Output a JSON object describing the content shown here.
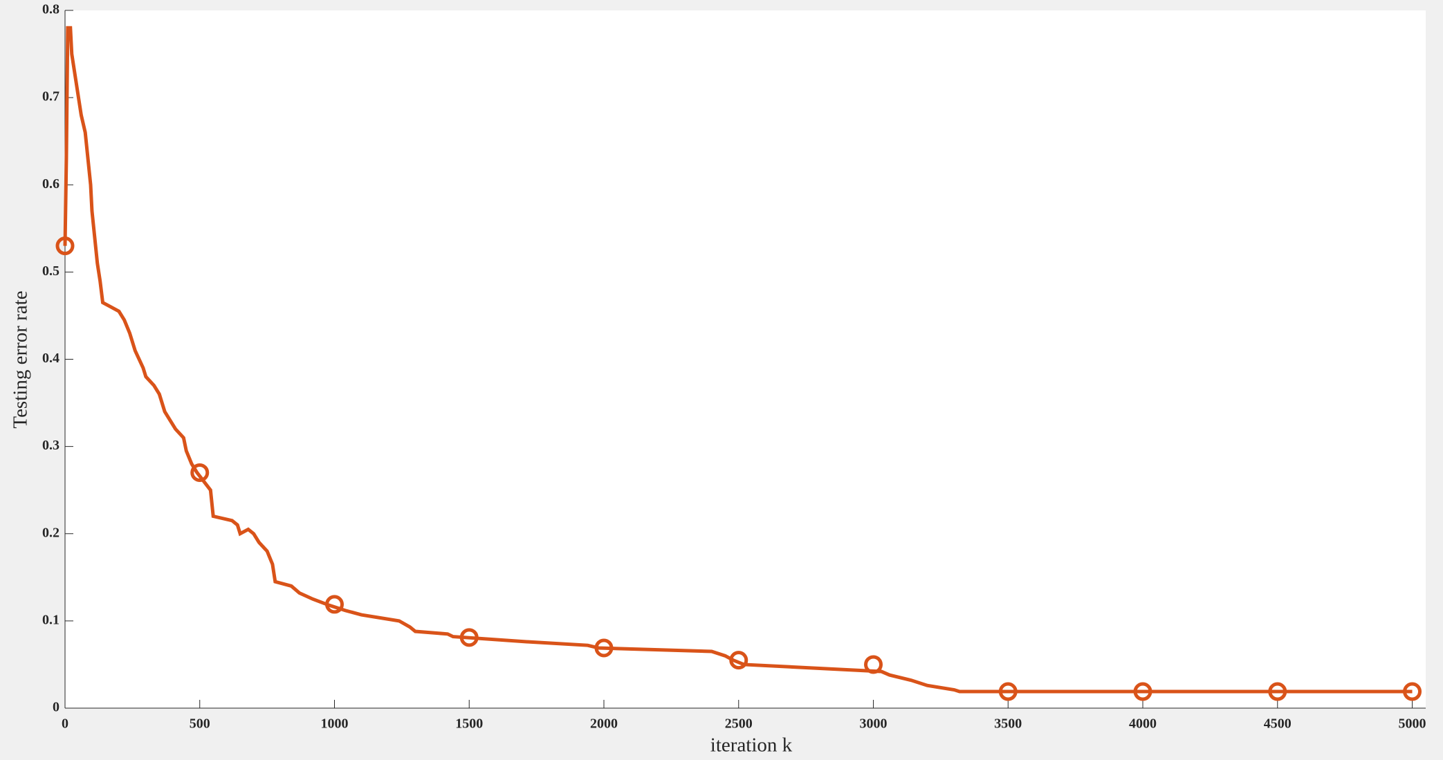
{
  "chart_data": {
    "type": "line",
    "xlabel": "iteration k",
    "ylabel": "Testing error rate",
    "xlim": [
      0,
      5050
    ],
    "ylim": [
      0,
      0.8
    ],
    "xticks": [
      0,
      500,
      1000,
      1500,
      2000,
      2500,
      3000,
      3500,
      4000,
      4500,
      5000
    ],
    "yticks": [
      0,
      0.1,
      0.2,
      0.3,
      0.4,
      0.5,
      0.6,
      0.7,
      0.8
    ],
    "series": [
      {
        "color": "#d95319",
        "x": [
          0,
          5,
          10,
          20,
          25,
          40,
          50,
          60,
          75,
          85,
          95,
          100,
          110,
          120,
          130,
          140,
          170,
          200,
          220,
          240,
          260,
          290,
          300,
          330,
          350,
          370,
          390,
          410,
          440,
          450,
          470,
          490,
          540,
          550,
          620,
          640,
          650,
          680,
          700,
          720,
          750,
          770,
          780,
          840,
          870,
          920,
          980,
          1040,
          1100,
          1240,
          1280,
          1300,
          1420,
          1440,
          1720,
          1940,
          1980,
          2400,
          2450,
          2480,
          2520,
          3030,
          3060,
          3140,
          3200,
          3300,
          3320,
          5000
        ],
        "values": [
          0.53,
          0.63,
          0.78,
          0.78,
          0.75,
          0.72,
          0.7,
          0.68,
          0.66,
          0.63,
          0.6,
          0.57,
          0.54,
          0.51,
          0.49,
          0.465,
          0.46,
          0.455,
          0.445,
          0.43,
          0.41,
          0.39,
          0.38,
          0.37,
          0.36,
          0.34,
          0.33,
          0.32,
          0.31,
          0.295,
          0.28,
          0.27,
          0.25,
          0.22,
          0.215,
          0.21,
          0.2,
          0.205,
          0.2,
          0.19,
          0.18,
          0.165,
          0.145,
          0.14,
          0.132,
          0.125,
          0.118,
          0.112,
          0.107,
          0.1,
          0.093,
          0.088,
          0.085,
          0.082,
          0.076,
          0.072,
          0.069,
          0.065,
          0.06,
          0.055,
          0.05,
          0.042,
          0.038,
          0.032,
          0.026,
          0.021,
          0.019,
          0.019
        ]
      },
      {
        "color": "#d95319",
        "marker": "circle",
        "x": [
          0,
          500,
          1000,
          1500,
          2000,
          2500,
          3000,
          3500,
          4000,
          4500,
          5000
        ],
        "values": [
          0.53,
          0.27,
          0.119,
          0.081,
          0.069,
          0.055,
          0.05,
          0.019,
          0.019,
          0.019,
          0.019
        ]
      }
    ]
  }
}
